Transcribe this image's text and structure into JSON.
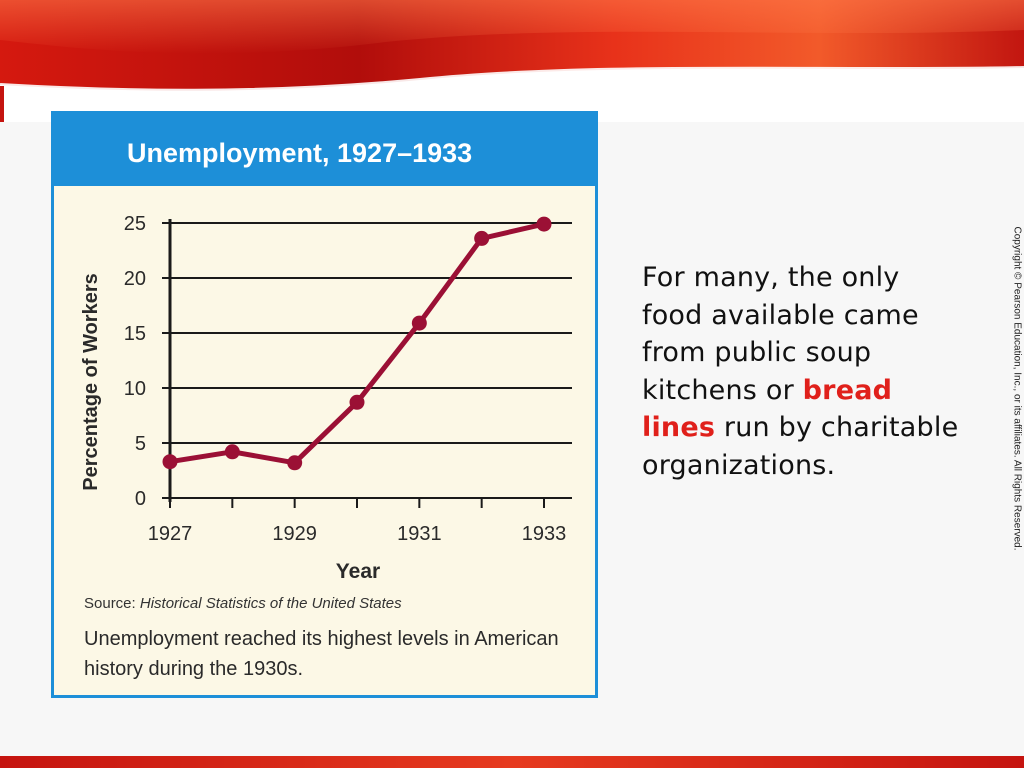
{
  "chart_data": {
    "type": "line",
    "title": "Unemployment, 1927–1933",
    "xlabel": "Year",
    "ylabel": "Percentage of Workers",
    "x": [
      1927,
      1928,
      1929,
      1930,
      1931,
      1932,
      1933
    ],
    "values": [
      3.3,
      4.2,
      3.2,
      8.7,
      15.9,
      23.6,
      24.9
    ],
    "x_ticks": [
      "1927",
      "1929",
      "1931",
      "1933"
    ],
    "y_ticks": [
      "0",
      "5",
      "10",
      "15",
      "20",
      "25"
    ],
    "ylim": [
      0,
      25
    ],
    "xlim": [
      1927,
      1933
    ],
    "grid": "horizontal",
    "line_color": "#9b1035"
  },
  "source": {
    "label": "Source:",
    "title": "Historical Statistics of the United States"
  },
  "caption": "Unemployment reached its highest levels in American history during the 1930s.",
  "body": {
    "before": "For many, the only food available came from public soup kitchens or ",
    "term": "bread lines",
    "after": " run by charitable organizations."
  },
  "copyright": "Copyright © Pearson Education, Inc., or its affiliates. All Rights Reserved.",
  "colors": {
    "accent_red": "#e0201b",
    "panel_blue": "#1d8fd8",
    "panel_bg": "#fcf8e6"
  }
}
